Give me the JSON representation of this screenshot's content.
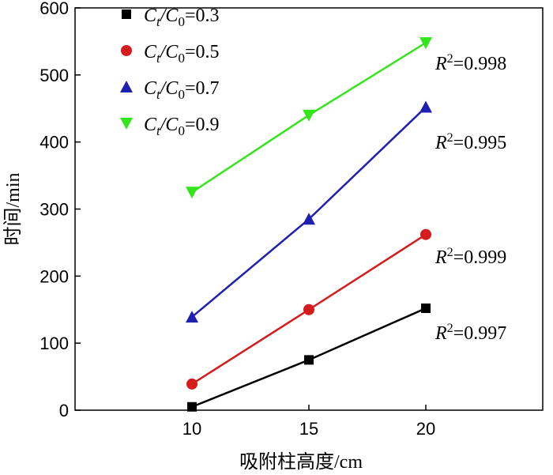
{
  "chart_data": {
    "type": "line",
    "title": "",
    "xlabel": "吸附柱高度/cm",
    "ylabel": "时间/min",
    "x": [
      10,
      15,
      20
    ],
    "x_ticks": [
      10,
      15,
      20
    ],
    "y_ticks": [
      0,
      100,
      200,
      300,
      400,
      500,
      600
    ],
    "xlim": [
      5,
      25
    ],
    "ylim": [
      0,
      600
    ],
    "grid": false,
    "legend_position": "top-left",
    "series": [
      {
        "name": "Ct/C0=0.3",
        "values": [
          5,
          75,
          152
        ],
        "color": "#000000",
        "marker": "square",
        "r2": "R²=0.997"
      },
      {
        "name": "Ct/C0=0.5",
        "values": [
          39,
          150,
          262
        ],
        "color": "#d41c1c",
        "marker": "circle",
        "r2": "R²=0.999"
      },
      {
        "name": "Ct/C0=0.7",
        "values": [
          139,
          285,
          452
        ],
        "color": "#1f1fb0",
        "marker": "triangle-up",
        "r2": "R²=0.995"
      },
      {
        "name": "Ct/C0=0.9",
        "values": [
          325,
          440,
          548
        ],
        "color": "#33e51a",
        "marker": "triangle-down",
        "r2": "R²=0.998"
      }
    ]
  }
}
